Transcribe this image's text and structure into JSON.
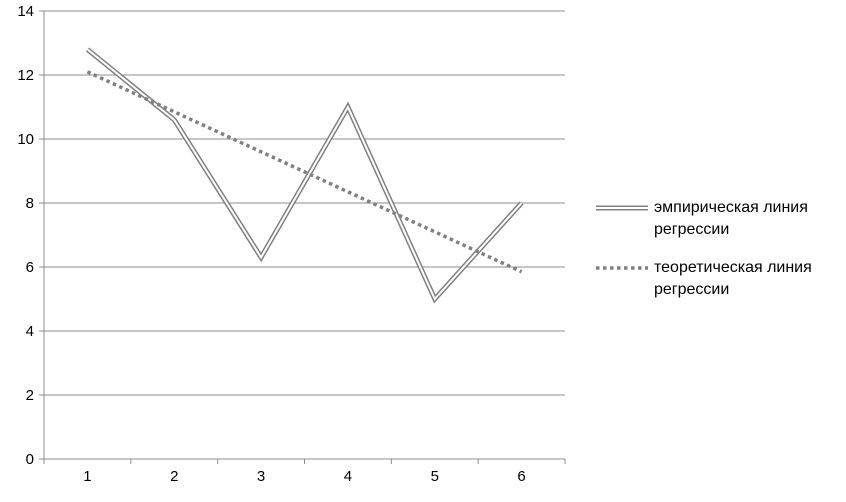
{
  "chart_data": {
    "type": "line",
    "title": "",
    "xlabel": "",
    "ylabel": "",
    "categories": [
      "1",
      "2",
      "3",
      "4",
      "5",
      "6"
    ],
    "ylim": [
      0,
      14
    ],
    "yticks": [
      0,
      2,
      4,
      6,
      8,
      10,
      12,
      14
    ],
    "grid": true,
    "legend_position": "right",
    "series": [
      {
        "name": "эмпирическая линия регрессии",
        "style": "double-line",
        "color": "#808080",
        "values": [
          12.8,
          10.6,
          6.3,
          11.0,
          5.0,
          8.0
        ]
      },
      {
        "name": "теоретическая линия регрессии",
        "style": "dotted",
        "color": "#808080",
        "values": [
          12.1,
          10.85,
          9.6,
          8.35,
          7.1,
          5.85
        ]
      }
    ]
  }
}
